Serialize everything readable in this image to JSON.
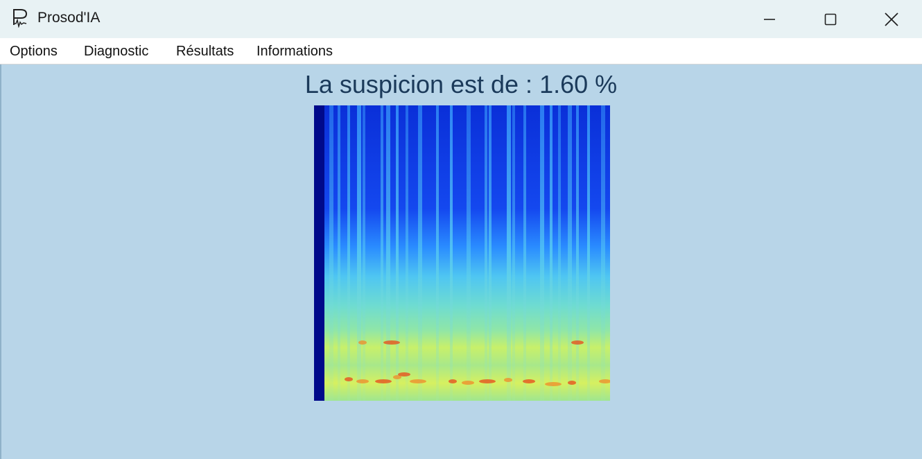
{
  "window": {
    "title": "Prosod'IA",
    "icon": "prosodia-logo-icon",
    "controls": [
      "minimize-icon",
      "maximize-icon",
      "close-icon"
    ]
  },
  "menu": {
    "items": [
      "Options",
      "Diagnostic",
      "Résultats",
      "Informations"
    ]
  },
  "main": {
    "suspicion_text": "La suspicion est de : 1.60 %"
  },
  "colors": {
    "background": "#b8d5e8",
    "titlebar": "#e8f2f4",
    "text": "#1b3a5a"
  }
}
